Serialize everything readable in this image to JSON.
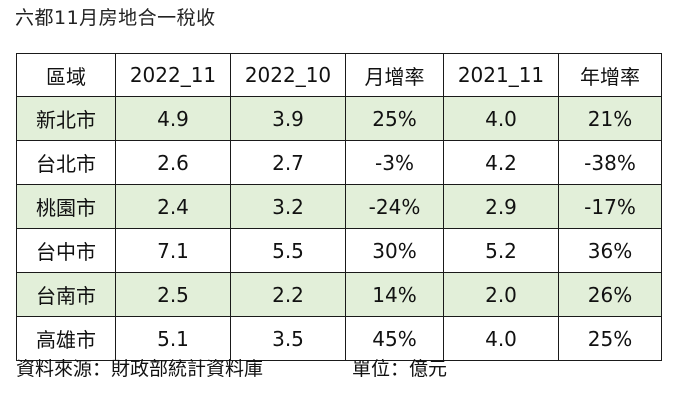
{
  "title": "六都11月房地合一稅收",
  "table": {
    "headers": [
      "區域",
      "2022_11",
      "2022_10",
      "月增率",
      "2021_11",
      "年增率"
    ],
    "rows": [
      [
        "新北市",
        "4.9",
        "3.9",
        "25%",
        "4.0",
        "21%"
      ],
      [
        "台北市",
        "2.6",
        "2.7",
        "-3%",
        "4.2",
        "-38%"
      ],
      [
        "桃園市",
        "2.4",
        "3.2",
        "-24%",
        "2.9",
        "-17%"
      ],
      [
        "台中市",
        "7.1",
        "5.5",
        "30%",
        "5.2",
        "36%"
      ],
      [
        "台南市",
        "2.5",
        "2.2",
        "14%",
        "2.0",
        "26%"
      ],
      [
        "高雄市",
        "5.1",
        "3.5",
        "45%",
        "4.0",
        "25%"
      ]
    ]
  },
  "footer": {
    "source": "資料來源：財政部統計資料庫",
    "unit": "單位：億元"
  },
  "colors": {
    "shaded_row": "#e2efd9",
    "border": "#1a1a1a"
  }
}
